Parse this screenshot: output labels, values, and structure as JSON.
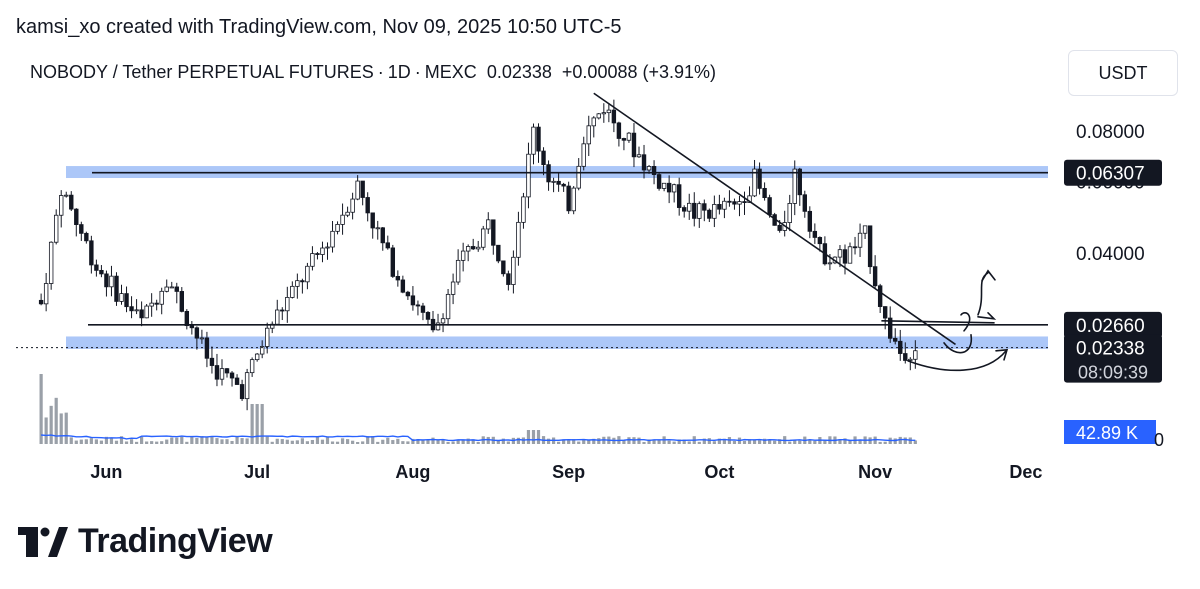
{
  "header": {
    "credit": "kamsi_xo created with TradingView.com, Nov 09, 2025 10:50 UTC-5"
  },
  "symbol": {
    "name": "NOBODY / Tether PERPETUAL FUTURES",
    "interval": "1D",
    "exchange": "MEXC",
    "price": "0.02338",
    "change": "+0.00088 (+3.91%)"
  },
  "currency_label": "USDT",
  "brand": "TradingView",
  "colors": {
    "zone": "#90b4f5",
    "candle": "#131722",
    "volume": "#9aa0a8",
    "volume_ma": "#2962ff",
    "volume_badge": "#2962ff",
    "price_label_bg": "#131722"
  },
  "chart_data": {
    "type": "candlestick",
    "title": "NOBODY / Tether PERPETUAL FUTURES · 1D · MEXC",
    "y_scale": "log",
    "ylim": [
      0.0155,
      0.102
    ],
    "y_ticks": [
      "0.08000",
      "0.06000",
      "0.04000"
    ],
    "x_ticks": [
      "Jun",
      "Jul",
      "Aug",
      "Sep",
      "Oct",
      "Nov",
      "Dec"
    ],
    "x_range": [
      "2025-05-14",
      "2025-12-07"
    ],
    "price_labels": [
      {
        "value": 0.06307,
        "text": "0.06307"
      },
      {
        "value": 0.0266,
        "text": "0.02660"
      },
      {
        "value": 0.02338,
        "text": "0.02338",
        "sub": "08:09:39"
      }
    ],
    "volume_label": "42.89 K",
    "volume_axis_label": "0",
    "resistance_zone": [
      0.0612,
      0.0655
    ],
    "support_zone": [
      0.0232,
      0.0249
    ],
    "horizontal_lines": [
      0.06307,
      0.0266
    ],
    "current_price": 0.02338,
    "trendline": [
      {
        "date": "2025-09-06",
        "price": 0.099
      },
      {
        "date": "2025-11-17",
        "price": 0.0238
      }
    ],
    "path_points": [
      {
        "date": "2025-05-19",
        "close": 0.03
      },
      {
        "date": "2025-05-23",
        "close": 0.058
      },
      {
        "date": "2025-05-30",
        "close": 0.037
      },
      {
        "date": "2025-06-08",
        "close": 0.027
      },
      {
        "date": "2025-06-13",
        "close": 0.035
      },
      {
        "date": "2025-06-22",
        "close": 0.021
      },
      {
        "date": "2025-06-28",
        "close": 0.0185
      },
      {
        "date": "2025-07-04",
        "close": 0.027
      },
      {
        "date": "2025-07-14",
        "close": 0.041
      },
      {
        "date": "2025-07-21",
        "close": 0.059
      },
      {
        "date": "2025-07-27",
        "close": 0.039
      },
      {
        "date": "2025-08-05",
        "close": 0.025
      },
      {
        "date": "2025-08-10",
        "close": 0.037
      },
      {
        "date": "2025-08-16",
        "close": 0.047
      },
      {
        "date": "2025-08-20",
        "close": 0.035
      },
      {
        "date": "2025-08-25",
        "close": 0.08
      },
      {
        "date": "2025-08-28",
        "close": 0.062
      },
      {
        "date": "2025-09-01",
        "close": 0.053
      },
      {
        "date": "2025-09-04",
        "close": 0.078
      },
      {
        "date": "2025-09-08",
        "close": 0.092
      },
      {
        "date": "2025-09-12",
        "close": 0.078
      },
      {
        "date": "2025-09-18",
        "close": 0.062
      },
      {
        "date": "2025-09-26",
        "close": 0.05
      },
      {
        "date": "2025-10-04",
        "close": 0.052
      },
      {
        "date": "2025-10-08",
        "close": 0.061
      },
      {
        "date": "2025-10-13",
        "close": 0.043
      },
      {
        "date": "2025-10-16",
        "close": 0.063
      },
      {
        "date": "2025-10-21",
        "close": 0.04
      },
      {
        "date": "2025-10-26",
        "close": 0.039
      },
      {
        "date": "2025-10-30",
        "close": 0.044
      },
      {
        "date": "2025-11-03",
        "close": 0.027
      },
      {
        "date": "2025-11-06",
        "close": 0.0228
      },
      {
        "date": "2025-11-09",
        "close": 0.02338
      }
    ]
  }
}
